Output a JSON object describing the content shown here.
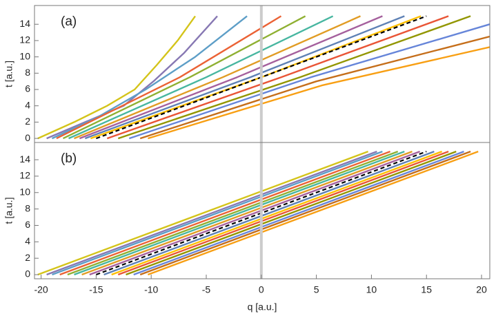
{
  "chart_data": [
    {
      "type": "line",
      "label": "(a)",
      "ylabel": "t [a.u.]",
      "xlim": [
        -20.6,
        20.75
      ],
      "ylim": [
        -0.5,
        16.3
      ],
      "yticks": [
        0,
        2,
        4,
        6,
        8,
        10,
        12,
        14
      ],
      "vline": 0,
      "series": [
        {
          "color": "#d4c41a",
          "x": [
            -20.3,
            -17,
            -14,
            -11.5,
            -9.5,
            -7.6,
            -6
          ],
          "values": [
            0,
            2,
            4,
            6,
            9,
            12,
            15
          ]
        },
        {
          "color": "#8778b3",
          "x": [
            -19.5,
            -16,
            -12.5,
            -9.8,
            -7,
            -4
          ],
          "values": [
            0,
            2,
            4,
            7,
            10.5,
            15
          ]
        },
        {
          "color": "#5d9ec7",
          "x": [
            -19,
            -15,
            -10.5,
            -6,
            -1.3
          ],
          "values": [
            0,
            2.5,
            6,
            10,
            15
          ]
        },
        {
          "color": "#eb6235",
          "x": [
            -18.6,
            -7.4,
            1.8
          ],
          "values": [
            0,
            7.5,
            15
          ]
        },
        {
          "color": "#8fb032",
          "x": [
            -18,
            -6.5,
            4
          ],
          "values": [
            0,
            7.5,
            15
          ]
        },
        {
          "color": "#47b6a0",
          "x": [
            -17.5,
            -5,
            6.5
          ],
          "values": [
            0,
            7.5,
            15
          ]
        },
        {
          "color": "#e19c24",
          "x": [
            -17,
            -3.5,
            9
          ],
          "values": [
            0,
            7.5,
            15
          ]
        },
        {
          "color": "#a5609d",
          "x": [
            -16.5,
            -2.2,
            11
          ],
          "values": [
            0,
            7.5,
            15
          ]
        },
        {
          "color": "#5e81b5",
          "x": [
            -16,
            -1,
            13
          ],
          "values": [
            0,
            7.5,
            15
          ]
        },
        {
          "color": "#ffbf00",
          "x": [
            -15.5,
            0,
            14.5
          ],
          "values": [
            0,
            7.5,
            15
          ]
        },
        {
          "color": "#e95536",
          "x": [
            -14,
            1.8,
            17
          ],
          "values": [
            0,
            7.5,
            15
          ]
        },
        {
          "color": "#929600",
          "x": [
            -13,
            3.5,
            19
          ],
          "values": [
            0,
            7.5,
            15
          ]
        },
        {
          "color": "#6685d9",
          "x": [
            -12,
            4.5,
            20.75
          ],
          "values": [
            0,
            7.5,
            14
          ]
        },
        {
          "color": "#c56e1a",
          "x": [
            -11,
            5,
            20.75
          ],
          "values": [
            0,
            7,
            12.5
          ]
        },
        {
          "color": "#f89f13",
          "x": [
            -10.3,
            5.5,
            20.75
          ],
          "values": [
            0,
            6.5,
            11.2
          ]
        },
        {
          "color": "#000000",
          "dashed": true,
          "x": [
            -15,
            15
          ],
          "values": [
            0,
            15
          ]
        }
      ]
    },
    {
      "type": "line",
      "label": "(b)",
      "ylabel": "t [a.u.]",
      "xlabel": "q [a.u.]",
      "xlim": [
        -20.6,
        20.75
      ],
      "ylim": [
        -0.5,
        16.1
      ],
      "yticks": [
        0,
        2,
        4,
        6,
        8,
        10,
        12,
        14
      ],
      "xticks": [
        -20,
        -15,
        -10,
        -5,
        0,
        5,
        10,
        15,
        20
      ],
      "vline": 0,
      "series": [
        {
          "color": "#d4c41a",
          "x": [
            -20.3,
            9.7
          ],
          "values": [
            0,
            15
          ]
        },
        {
          "color": "#8778b3",
          "x": [
            -19.5,
            10.5
          ],
          "values": [
            0,
            15
          ]
        },
        {
          "color": "#5d9ec7",
          "x": [
            -19,
            11
          ],
          "values": [
            0,
            15
          ]
        },
        {
          "color": "#eb6235",
          "x": [
            -18.3,
            11.7
          ],
          "values": [
            0,
            15
          ]
        },
        {
          "color": "#8fb032",
          "x": [
            -17.6,
            12.4
          ],
          "values": [
            0,
            15
          ]
        },
        {
          "color": "#47b6a0",
          "x": [
            -17,
            13
          ],
          "values": [
            0,
            15
          ]
        },
        {
          "color": "#e19c24",
          "x": [
            -16.3,
            13.7
          ],
          "values": [
            0,
            15
          ]
        },
        {
          "color": "#a5609d",
          "x": [
            -15.6,
            14.4
          ],
          "values": [
            0,
            15
          ]
        },
        {
          "color": "#5e81b5",
          "x": [
            -14.3,
            15.7
          ],
          "values": [
            0,
            15
          ]
        },
        {
          "color": "#ffbf00",
          "x": [
            -13.6,
            16.4
          ],
          "values": [
            0,
            15
          ]
        },
        {
          "color": "#e95536",
          "x": [
            -13,
            17
          ],
          "values": [
            0,
            15
          ]
        },
        {
          "color": "#929600",
          "x": [
            -12.3,
            17.7
          ],
          "values": [
            0,
            15
          ]
        },
        {
          "color": "#6685d9",
          "x": [
            -11.6,
            18.4
          ],
          "values": [
            0,
            15
          ]
        },
        {
          "color": "#c56e1a",
          "x": [
            -11,
            19
          ],
          "values": [
            0,
            15
          ]
        },
        {
          "color": "#f89f13",
          "x": [
            -10.3,
            19.7
          ],
          "values": [
            0,
            15
          ]
        },
        {
          "color": "#000000",
          "dashed": true,
          "x": [
            -15,
            15
          ],
          "values": [
            0,
            15
          ]
        }
      ]
    }
  ]
}
